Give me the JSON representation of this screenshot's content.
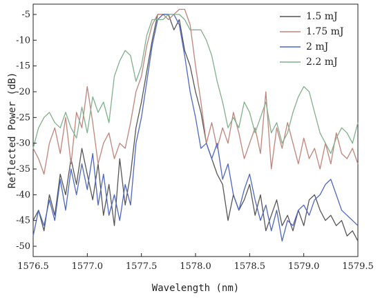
{
  "chart_data": {
    "type": "line",
    "xlabel": "Wavelength (nm)",
    "ylabel": "Reflected Power (dB)",
    "xlim": [
      1576.5,
      1579.5
    ],
    "ylim": [
      -52,
      -3
    ],
    "xticks": [
      1576.5,
      1577.0,
      1577.5,
      1578.0,
      1578.5,
      1579.0,
      1579.5
    ],
    "xtick_labels": [
      "1576.5",
      "1577.0",
      "1577.5",
      "1578.0",
      "1578.5",
      "1579.0",
      "1579.5"
    ],
    "yticks": [
      -5,
      -10,
      -15,
      -20,
      -25,
      -30,
      -35,
      -40,
      -45,
      -50
    ],
    "ytick_labels": [
      "-5",
      "-10",
      "-15",
      "-20",
      "-25",
      "-30",
      "-35",
      "-40",
      "-45",
      "-50"
    ],
    "grid": false,
    "legend_position": "top-right",
    "series": [
      {
        "name": "1.5 mJ",
        "color": "#555555",
        "x": [
          1576.5,
          1576.55,
          1576.6,
          1576.65,
          1576.7,
          1576.75,
          1576.8,
          1576.85,
          1576.9,
          1576.95,
          1577.0,
          1577.05,
          1577.1,
          1577.15,
          1577.2,
          1577.25,
          1577.3,
          1577.35,
          1577.4,
          1577.45,
          1577.5,
          1577.55,
          1577.6,
          1577.65,
          1577.7,
          1577.75,
          1577.8,
          1577.85,
          1577.9,
          1577.95,
          1578.0,
          1578.05,
          1578.1,
          1578.15,
          1578.2,
          1578.25,
          1578.3,
          1578.35,
          1578.4,
          1578.45,
          1578.5,
          1578.55,
          1578.6,
          1578.65,
          1578.7,
          1578.75,
          1578.8,
          1578.85,
          1578.9,
          1578.95,
          1579.0,
          1579.05,
          1579.1,
          1579.15,
          1579.2,
          1579.25,
          1579.3,
          1579.35,
          1579.4,
          1579.45,
          1579.5
        ],
        "values": [
          -45,
          -43,
          -47,
          -40,
          -44,
          -36,
          -40,
          -33,
          -38,
          -31,
          -36,
          -41,
          -34,
          -44,
          -38,
          -46,
          -33,
          -42,
          -36,
          -27,
          -22,
          -16,
          -10,
          -5,
          -5,
          -5,
          -8,
          -6,
          -12,
          -15,
          -20,
          -24,
          -30,
          -33,
          -36,
          -38,
          -45,
          -40,
          -43,
          -41,
          -38,
          -44,
          -40,
          -47,
          -44,
          -41,
          -46,
          -44,
          -47,
          -43,
          -46,
          -41,
          -40,
          -43,
          -45,
          -44,
          -46,
          -45,
          -48,
          -47,
          -49
        ]
      },
      {
        "name": "1.75 mJ",
        "color": "#c0837a",
        "x": [
          1576.5,
          1576.55,
          1576.6,
          1576.65,
          1576.7,
          1576.75,
          1576.8,
          1576.85,
          1576.9,
          1576.95,
          1577.0,
          1577.05,
          1577.1,
          1577.15,
          1577.2,
          1577.25,
          1577.3,
          1577.35,
          1577.4,
          1577.45,
          1577.5,
          1577.55,
          1577.6,
          1577.65,
          1577.7,
          1577.75,
          1577.8,
          1577.85,
          1577.9,
          1577.95,
          1578.0,
          1578.05,
          1578.1,
          1578.15,
          1578.2,
          1578.25,
          1578.3,
          1578.35,
          1578.4,
          1578.45,
          1578.5,
          1578.55,
          1578.6,
          1578.65,
          1578.7,
          1578.75,
          1578.8,
          1578.85,
          1578.9,
          1578.95,
          1579.0,
          1579.05,
          1579.1,
          1579.15,
          1579.2,
          1579.25,
          1579.3,
          1579.35,
          1579.4,
          1579.45,
          1579.5
        ],
        "values": [
          -31,
          -33,
          -36,
          -30,
          -27,
          -32,
          -25,
          -34,
          -24,
          -27,
          -19,
          -26,
          -34,
          -30,
          -28,
          -33,
          -30,
          -31,
          -26,
          -20,
          -17,
          -11,
          -7,
          -5,
          -5,
          -6,
          -5,
          -4,
          -4,
          -7,
          -15,
          -22,
          -30,
          -26,
          -31,
          -27,
          -30,
          -24,
          -28,
          -33,
          -30,
          -27,
          -32,
          -20,
          -35,
          -27,
          -31,
          -26,
          -30,
          -34,
          -29,
          -33,
          -31,
          -35,
          -30,
          -34,
          -28,
          -32,
          -33,
          -31,
          -34
        ]
      },
      {
        "name": "2 mJ",
        "color": "#4b66c4",
        "x": [
          1576.5,
          1576.55,
          1576.6,
          1576.65,
          1576.7,
          1576.75,
          1576.8,
          1576.85,
          1576.9,
          1576.95,
          1577.0,
          1577.05,
          1577.1,
          1577.15,
          1577.2,
          1577.25,
          1577.3,
          1577.35,
          1577.4,
          1577.45,
          1577.5,
          1577.55,
          1577.6,
          1577.65,
          1577.7,
          1577.75,
          1577.8,
          1577.85,
          1577.9,
          1577.95,
          1578.0,
          1578.05,
          1578.1,
          1578.15,
          1578.2,
          1578.25,
          1578.3,
          1578.35,
          1578.4,
          1578.45,
          1578.5,
          1578.55,
          1578.6,
          1578.65,
          1578.7,
          1578.75,
          1578.8,
          1578.85,
          1578.9,
          1578.95,
          1579.0,
          1579.05,
          1579.1,
          1579.15,
          1579.2,
          1579.25,
          1579.3,
          1579.35,
          1579.4,
          1579.45,
          1579.5
        ],
        "values": [
          -48,
          -43,
          -46,
          -41,
          -45,
          -37,
          -43,
          -35,
          -40,
          -34,
          -39,
          -32,
          -42,
          -36,
          -44,
          -40,
          -45,
          -38,
          -42,
          -30,
          -25,
          -18,
          -11,
          -6,
          -5,
          -5,
          -5,
          -7,
          -13,
          -20,
          -25,
          -31,
          -30,
          -33,
          -30,
          -37,
          -34,
          -40,
          -43,
          -39,
          -36,
          -41,
          -45,
          -42,
          -47,
          -43,
          -49,
          -45,
          -46,
          -43,
          -42,
          -44,
          -41,
          -40,
          -38,
          -37,
          -40,
          -43,
          -44,
          -45,
          -46
        ]
      },
      {
        "name": "2.2 mJ",
        "color": "#7fb08a",
        "x": [
          1576.5,
          1576.55,
          1576.6,
          1576.65,
          1576.7,
          1576.75,
          1576.8,
          1576.85,
          1576.9,
          1576.95,
          1577.0,
          1577.05,
          1577.1,
          1577.15,
          1577.2,
          1577.25,
          1577.3,
          1577.35,
          1577.4,
          1577.45,
          1577.5,
          1577.55,
          1577.6,
          1577.65,
          1577.7,
          1577.75,
          1577.8,
          1577.85,
          1577.9,
          1577.95,
          1578.0,
          1578.05,
          1578.1,
          1578.15,
          1578.2,
          1578.25,
          1578.3,
          1578.35,
          1578.4,
          1578.45,
          1578.5,
          1578.55,
          1578.6,
          1578.65,
          1578.7,
          1578.75,
          1578.8,
          1578.85,
          1578.9,
          1578.95,
          1579.0,
          1579.05,
          1579.1,
          1579.15,
          1579.2,
          1579.25,
          1579.3,
          1579.35,
          1579.4,
          1579.45,
          1579.5
        ],
        "values": [
          -31,
          -27,
          -25,
          -24,
          -26,
          -27,
          -24,
          -27,
          -29,
          -23,
          -28,
          -21,
          -24,
          -22,
          -26,
          -17,
          -14,
          -12,
          -13,
          -18,
          -15,
          -9,
          -6,
          -6,
          -6,
          -5,
          -5,
          -5,
          -6,
          -8,
          -8,
          -8,
          -10,
          -13,
          -18,
          -22,
          -27,
          -25,
          -27,
          -22,
          -24,
          -28,
          -25,
          -22,
          -28,
          -26,
          -30,
          -28,
          -24,
          -21,
          -19,
          -20,
          -24,
          -28,
          -30,
          -32,
          -29,
          -27,
          -28,
          -30,
          -26
        ]
      }
    ]
  }
}
